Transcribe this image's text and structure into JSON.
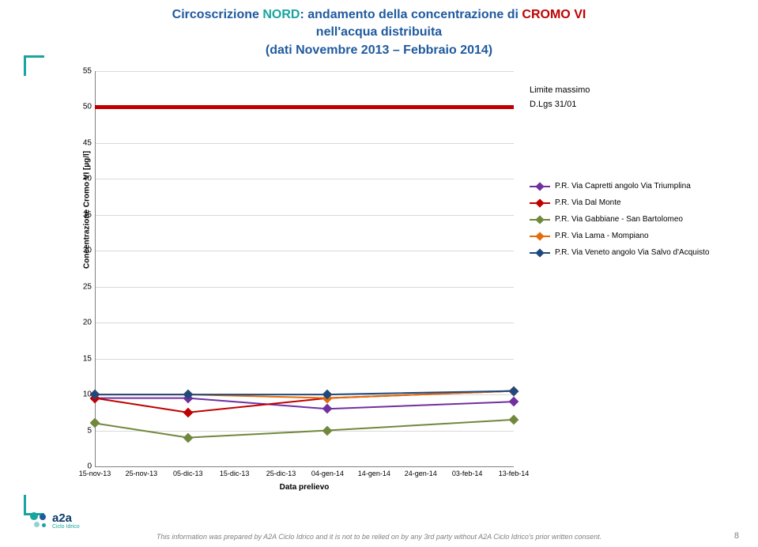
{
  "title": {
    "line1_blue": "Circoscrizione ",
    "line1_teal": "NORD",
    "line1_after": ": andamento della concentrazione di ",
    "line1_red": "CROMO VI",
    "line2": "nell'acqua distribuita",
    "line3": "(dati Novembre 2013 – Febbraio 2014)"
  },
  "chart": {
    "y_label": "Concentrazione Cromo VI [µg/l]",
    "x_label": "Data prelievo",
    "ylim": [
      0,
      55
    ],
    "ytick_step": 5,
    "x_categories": [
      "15-nov-13",
      "25-nov-13",
      "05-dic-13",
      "15-dic-13",
      "25-dic-13",
      "04-gen-14",
      "14-gen-14",
      "24-gen-14",
      "03-feb-14",
      "13-feb-14"
    ],
    "data_x_indices": [
      0,
      2,
      5,
      9
    ],
    "grid_color": "#d9d9d9",
    "axis_color": "#808080",
    "background": "#ffffff",
    "limit": {
      "value": 50,
      "color": "#c00000",
      "label1": "Limite  massimo",
      "label2": "D.Lgs 31/01"
    },
    "series": [
      {
        "name": "P.R. Via Capretti angolo Via Triumplina",
        "color": "#7030a0",
        "values": [
          9.5,
          9.5,
          8.0,
          9.0
        ]
      },
      {
        "name": "P.R. Via Dal Monte",
        "color": "#c00000",
        "values": [
          9.5,
          7.5,
          9.5,
          10.5
        ]
      },
      {
        "name": "P.R. Via Gabbiane - San Bartolomeo",
        "color": "#70883c",
        "values": [
          6.0,
          4.0,
          5.0,
          6.5
        ]
      },
      {
        "name": "P.R. Via Lama - Mompiano",
        "color": "#e46c0a",
        "values": [
          10.0,
          10.0,
          9.5,
          10.5
        ]
      },
      {
        "name": "P.R. Via Veneto angolo Via Salvo d'Acquisto",
        "color": "#1f497d",
        "values": [
          10.0,
          10.0,
          10.0,
          10.5
        ]
      }
    ]
  },
  "logo": {
    "brand": "a2a",
    "sub": "Ciclo Idrico"
  },
  "footer": "This information was prepared by A2A Ciclo Idrico and it is not to be relied on by any 3rd party without A2A Ciclo Idrico's prior written consent.",
  "page": "8",
  "colors": {
    "blue": "#1f5a9e",
    "teal": "#1aa4a0",
    "red": "#c00000"
  }
}
